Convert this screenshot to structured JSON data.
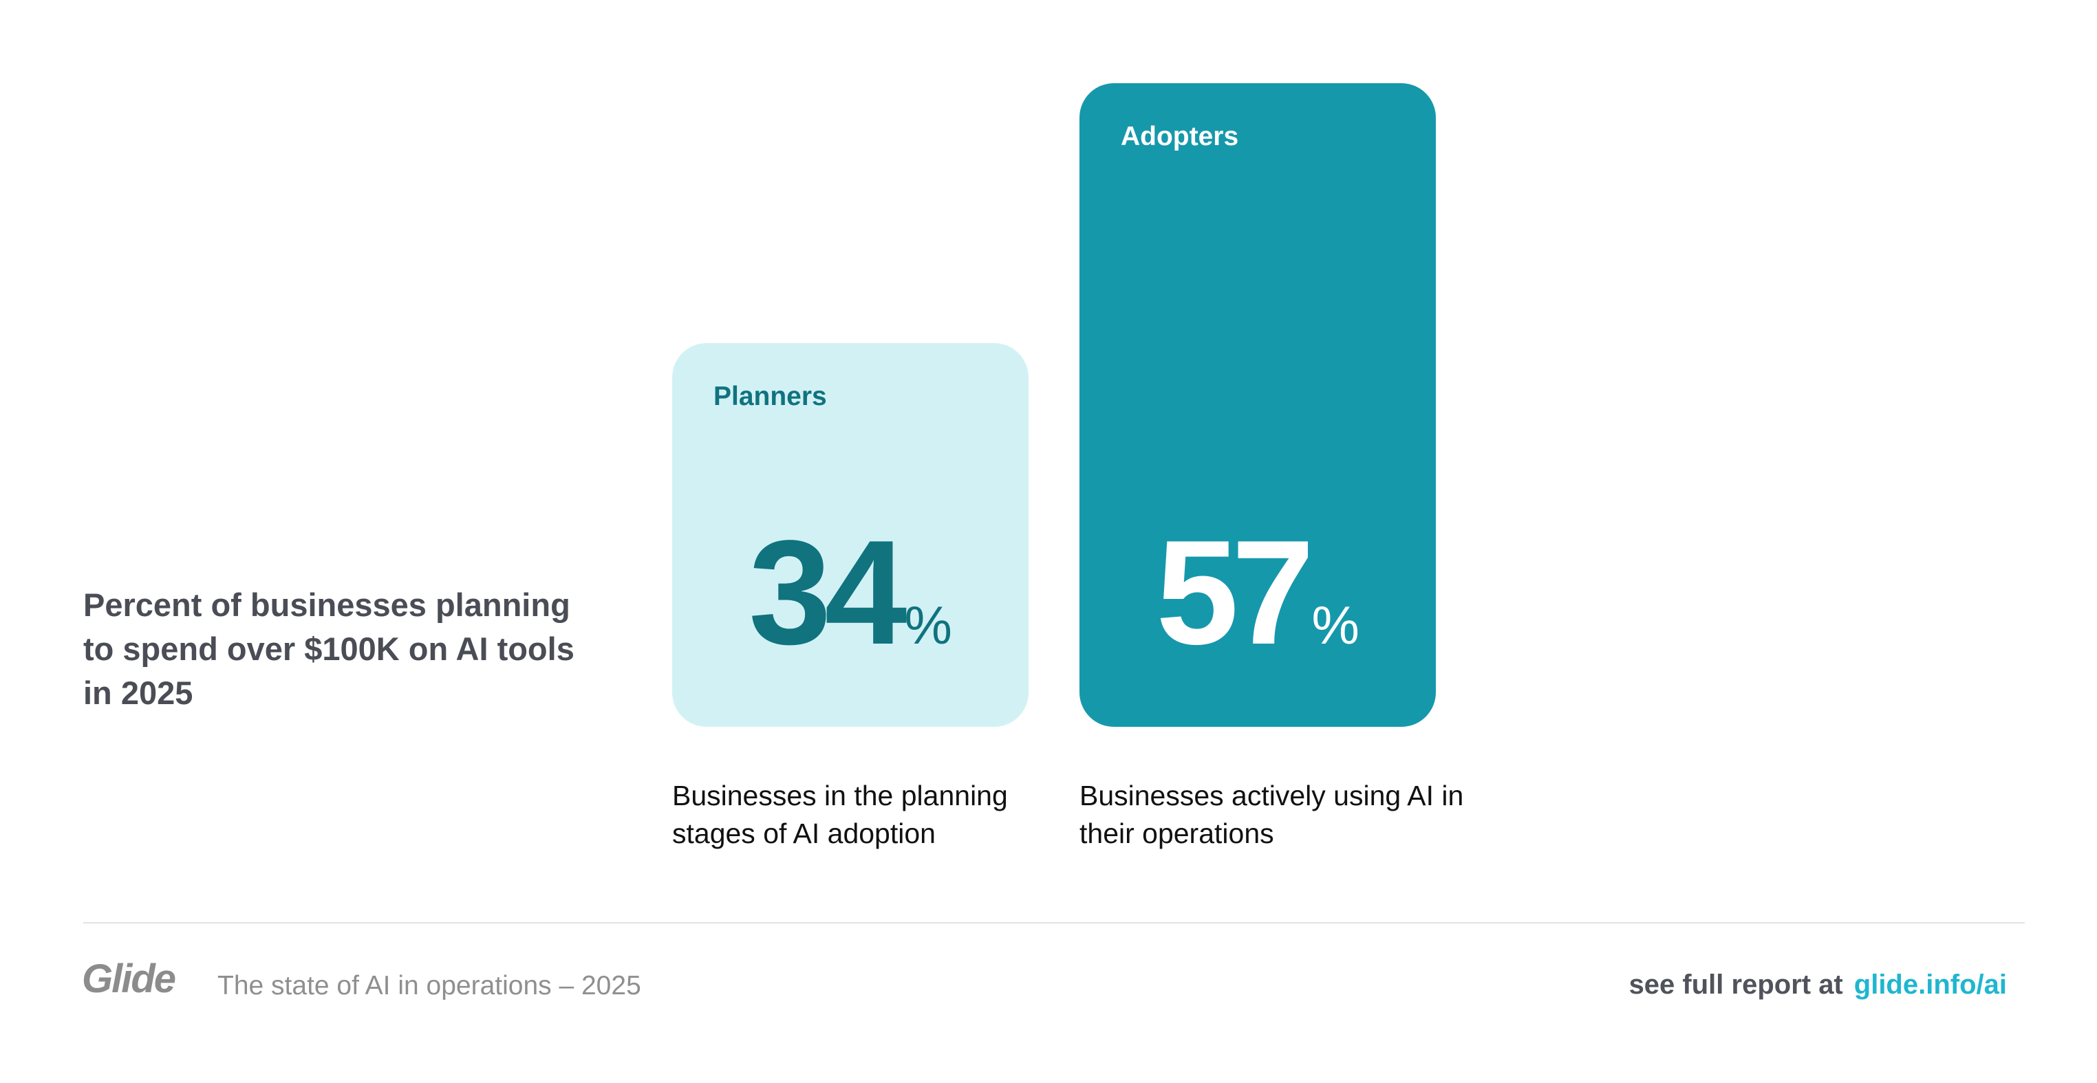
{
  "side_title": "Percent of businesses planning to spend over $100K on AI tools in 2025",
  "chart_data": {
    "type": "bar",
    "categories": [
      "Planners",
      "Adopters"
    ],
    "values": [
      34,
      57
    ],
    "unit": "%",
    "descriptions": [
      "Businesses in the planning stages of AI adoption",
      "Businesses actively using AI in their operations"
    ],
    "colors": {
      "Planners": {
        "fill": "#d2f1f5",
        "text": "#10737e"
      },
      "Adopters": {
        "fill": "#1698ab",
        "text": "#ffffff"
      }
    }
  },
  "footer": {
    "logo": "Glide",
    "subtitle": "The state of AI in operations – 2025",
    "report_prefix": "see full report at",
    "report_link": "glide.info/ai",
    "link_color": "#1fb6cf"
  }
}
